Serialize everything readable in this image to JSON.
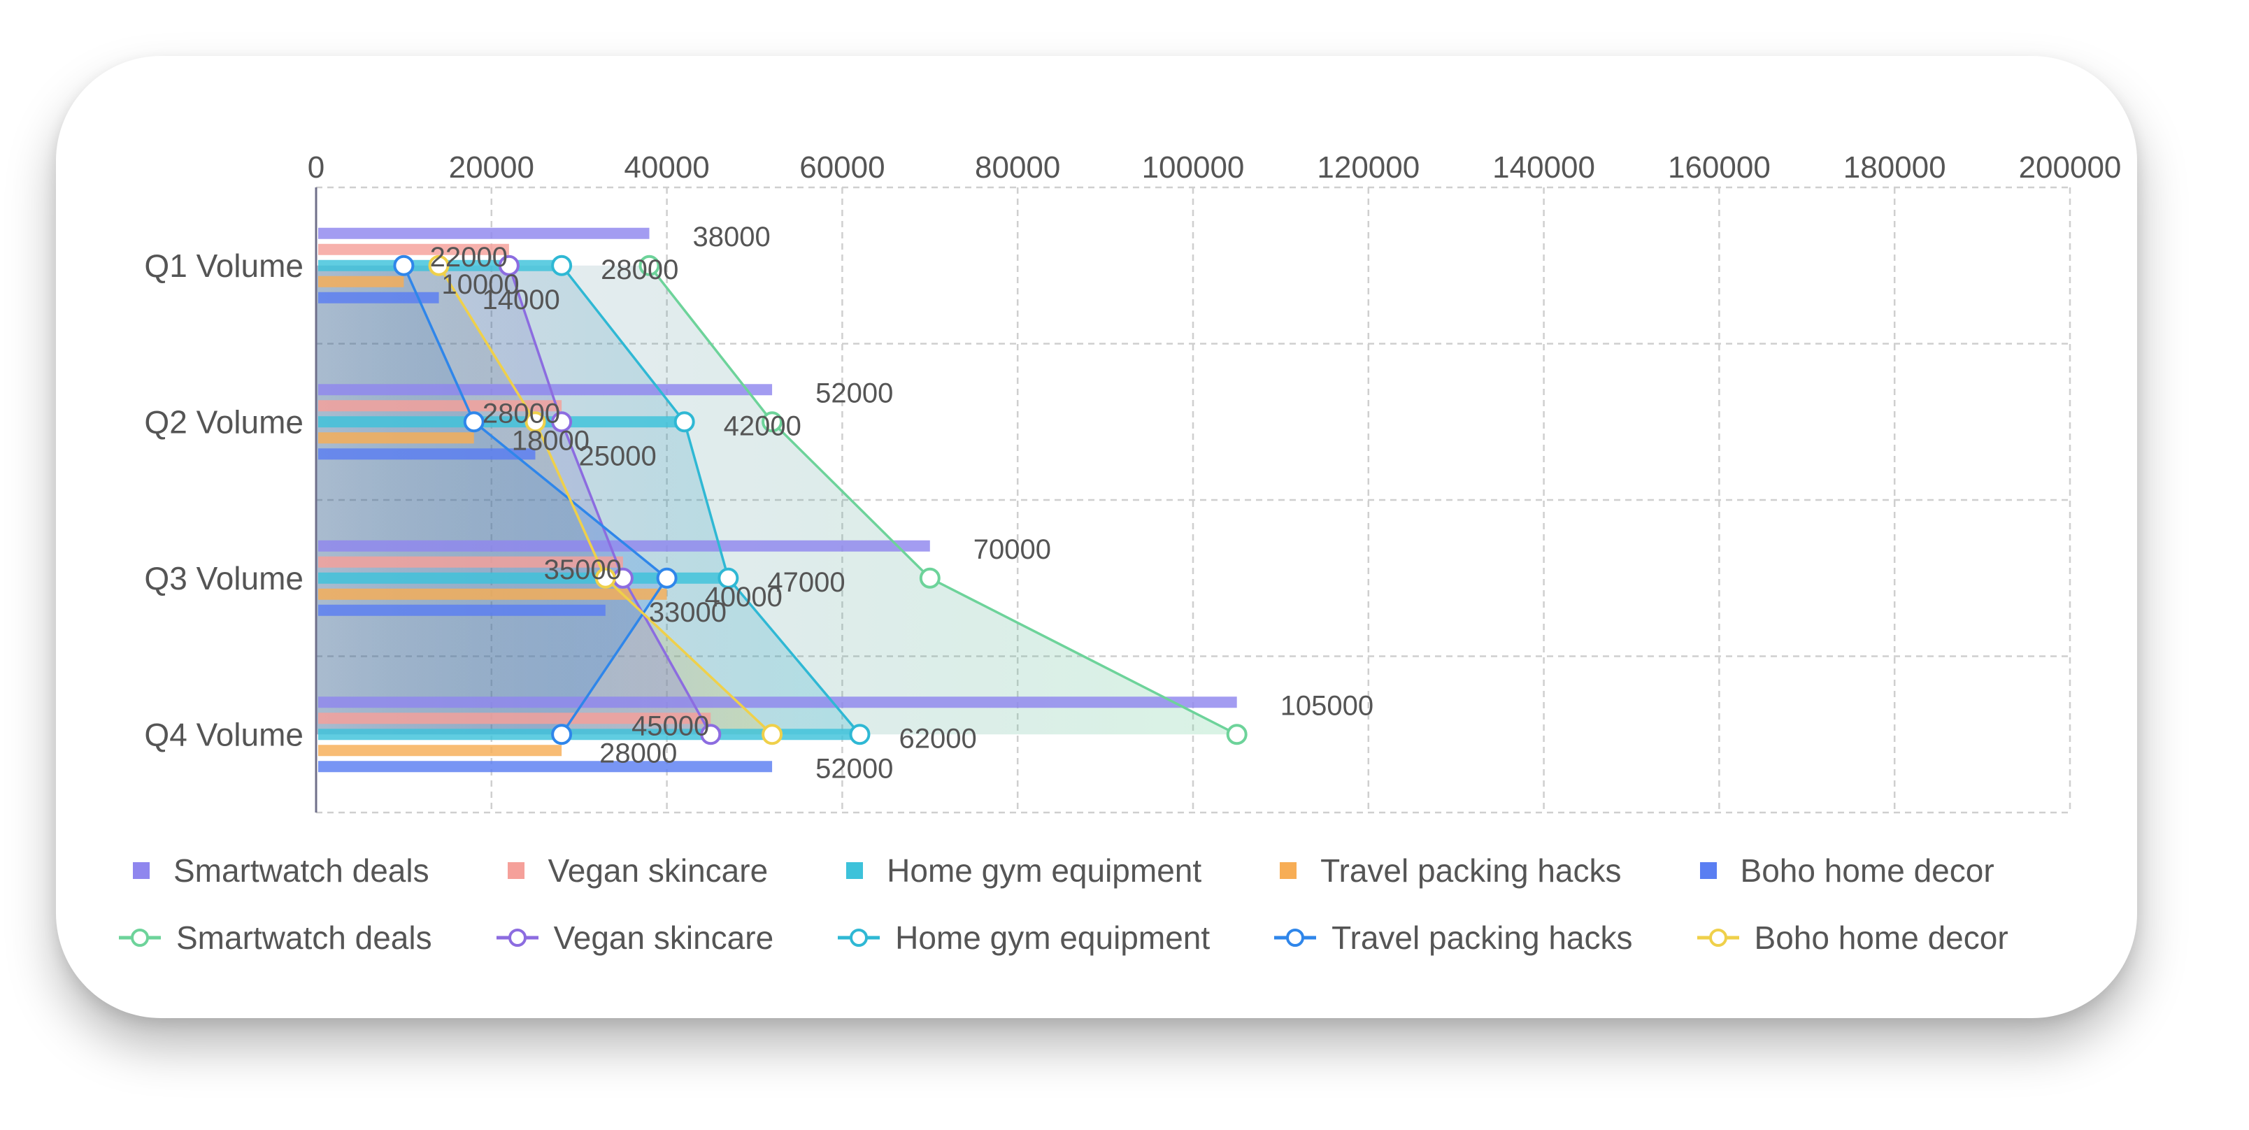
{
  "chart_data": {
    "type": "bar+line",
    "orientation": "horizontal",
    "categories": [
      "Q1 Volume",
      "Q2 Volume",
      "Q3 Volume",
      "Q4 Volume"
    ],
    "xlim": [
      0,
      200000
    ],
    "ticks": [
      "0",
      "20000",
      "40000",
      "60000",
      "80000",
      "100000",
      "120000",
      "140000",
      "160000",
      "180000",
      "200000"
    ],
    "tick_values": [
      0,
      20000,
      40000,
      60000,
      80000,
      100000,
      120000,
      140000,
      160000,
      180000,
      200000
    ],
    "grid": true,
    "legend_position": "bottom",
    "bar_series": [
      {
        "name": "Smartwatch deals",
        "color": "#8f86ee",
        "values": [
          38000,
          52000,
          70000,
          105000
        ]
      },
      {
        "name": "Vegan skincare",
        "color": "#f5a09a",
        "values": [
          22000,
          28000,
          35000,
          45000
        ]
      },
      {
        "name": "Home gym equipment",
        "color": "#3dc2da",
        "values": [
          28000,
          42000,
          47000,
          62000
        ]
      },
      {
        "name": "Travel packing hacks",
        "color": "#f7ad55",
        "values": [
          10000,
          18000,
          40000,
          28000
        ]
      },
      {
        "name": "Boho home decor",
        "color": "#5a7ef2",
        "values": [
          14000,
          25000,
          33000,
          52000
        ]
      }
    ],
    "line_series": [
      {
        "name": "Smartwatch deals",
        "color": "#6dd39a",
        "values": [
          38000,
          52000,
          70000,
          105000
        ]
      },
      {
        "name": "Vegan skincare",
        "color": "#8c6ce0",
        "values": [
          22000,
          28000,
          35000,
          45000
        ]
      },
      {
        "name": "Home gym equipment",
        "color": "#2fb8d4",
        "values": [
          28000,
          42000,
          47000,
          62000
        ]
      },
      {
        "name": "Travel packing hacks",
        "color": "#2f86ea",
        "values": [
          10000,
          18000,
          40000,
          28000
        ]
      },
      {
        "name": "Boho home decor",
        "color": "#efd04a",
        "values": [
          14000,
          25000,
          33000,
          52000
        ]
      }
    ]
  }
}
